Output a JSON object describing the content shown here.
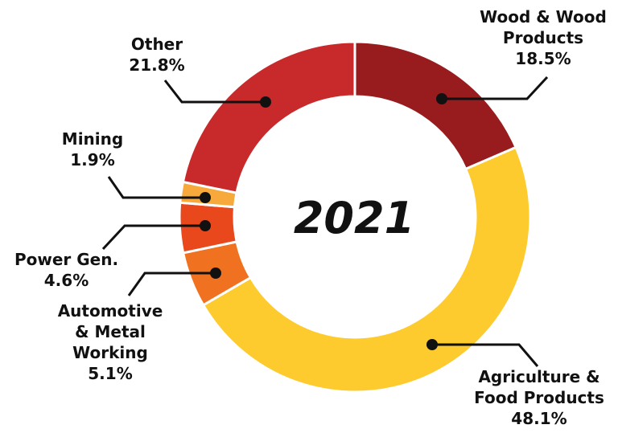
{
  "chart_data": {
    "type": "donut",
    "center_label": "2021",
    "slices": [
      {
        "name": "Wood & Wood Products",
        "value": 18.5,
        "label_lines": [
          "Wood & Wood",
          "Products"
        ],
        "pct": "18.5%",
        "color": "#981b1e"
      },
      {
        "name": "Agriculture & Food Products",
        "value": 48.1,
        "label_lines": [
          "Agriculture &",
          "Food Products"
        ],
        "pct": "48.1%",
        "color": "#fdcb2e"
      },
      {
        "name": "Automotive & Metal Working",
        "value": 5.1,
        "label_lines": [
          "Automotive",
          "& Metal",
          "Working"
        ],
        "pct": "5.1%",
        "color": "#f07220"
      },
      {
        "name": "Power Gen.",
        "value": 4.6,
        "label_lines": [
          "Power Gen."
        ],
        "pct": "4.6%",
        "color": "#e8481c"
      },
      {
        "name": "Mining",
        "value": 1.9,
        "label_lines": [
          "Mining"
        ],
        "pct": "1.9%",
        "color": "#f7a93b"
      },
      {
        "name": "Other",
        "value": 21.8,
        "label_lines": [
          "Other"
        ],
        "pct": "21.8%",
        "color": "#c8292b"
      }
    ]
  }
}
